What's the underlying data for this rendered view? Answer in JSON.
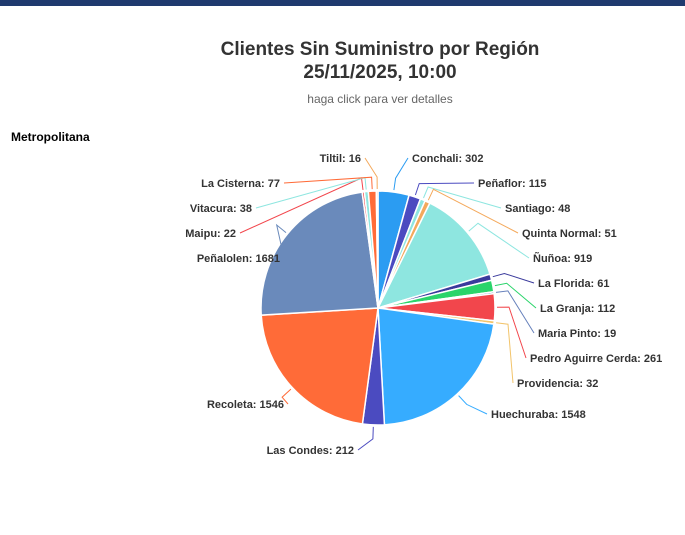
{
  "header": {
    "title_line1": "Clientes Sin Suministro por Región",
    "title_line2": "25/11/2025, 10:00",
    "subtitle": "haga click para ver detalles"
  },
  "chart_data": {
    "type": "pie",
    "title": "Metropolitana",
    "slices": [
      {
        "name": "Conchali",
        "label": "Conchali: 302",
        "value": 302,
        "color": "#2b9cf2"
      },
      {
        "name": "Peñaflor",
        "label": "Peñaflor: 115",
        "value": 115,
        "color": "#4b4bc0"
      },
      {
        "name": "Santiago",
        "label": "Santiago: 48",
        "value": 48,
        "color": "#8ee6e0"
      },
      {
        "name": "Quinta Normal",
        "label": "Quinta Normal: 51",
        "value": 51,
        "color": "#f4a95c"
      },
      {
        "name": "Ñuñoa",
        "label": "Ñuñoa: 919",
        "value": 919,
        "color": "#8ee6e0"
      },
      {
        "name": "La Florida",
        "label": "La Florida: 61",
        "value": 61,
        "color": "#3a3a9c"
      },
      {
        "name": "La Granja",
        "label": "La Granja: 112",
        "value": 112,
        "color": "#2ad46a"
      },
      {
        "name": "Maria Pinto",
        "label": "Maria Pinto: 19",
        "value": 19,
        "color": "#6680bb"
      },
      {
        "name": "Pedro Aguirre Cerda",
        "label": "Pedro Aguirre Cerda: 261",
        "value": 261,
        "color": "#f2464c"
      },
      {
        "name": "Providencia",
        "label": "Providencia: 32",
        "value": 32,
        "color": "#f2c46b"
      },
      {
        "name": "Huechuraba",
        "label": "Huechuraba: 1548",
        "value": 1548,
        "color": "#36acff"
      },
      {
        "name": "Las Condes",
        "label": "Las Condes: 212",
        "value": 212,
        "color": "#4b4bc0"
      },
      {
        "name": "Recoleta",
        "label": "Recoleta: 1546",
        "value": 1546,
        "color": "#ff6b38"
      },
      {
        "name": "Peñalolen",
        "label": "Peñalolen: 1681",
        "value": 1681,
        "color": "#6a8abb"
      },
      {
        "name": "Maipu",
        "label": "Maipu: 22",
        "value": 22,
        "color": "#f2464c"
      },
      {
        "name": "Vitacura",
        "label": "Vitacura: 38",
        "value": 38,
        "color": "#8ee6e0"
      },
      {
        "name": "La Cisterna",
        "label": "La Cisterna: 77",
        "value": 77,
        "color": "#ff6b38"
      },
      {
        "name": "Tiltil",
        "label": "Tiltil: 16",
        "value": 16,
        "color": "#f4a95c"
      }
    ]
  }
}
